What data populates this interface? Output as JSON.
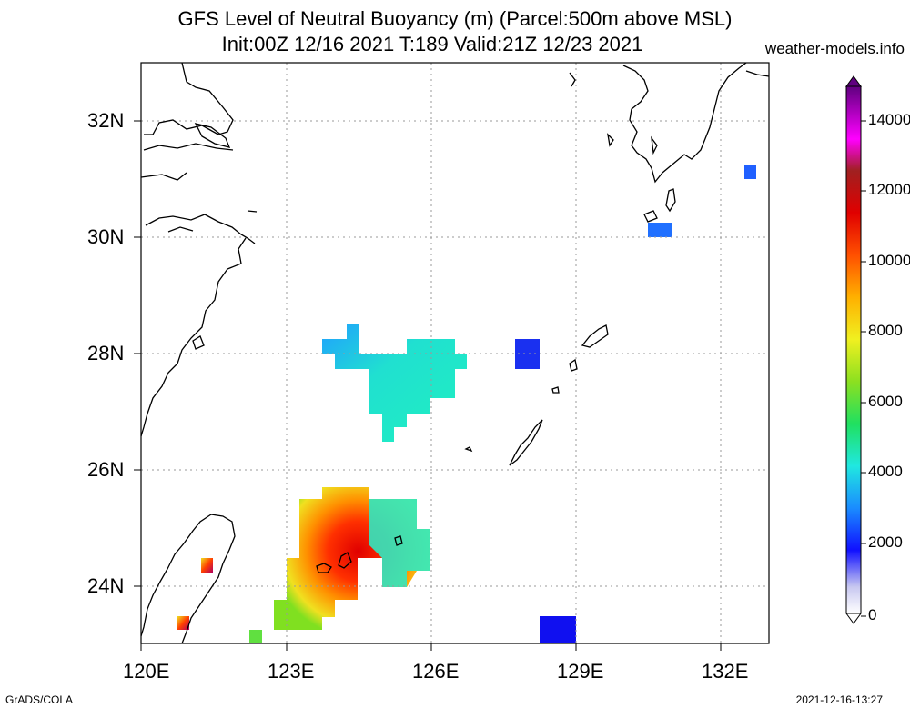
{
  "title": {
    "line1": "GFS Level of Neutral Buoyancy (m) (Parcel:500m above MSL)",
    "line2": "Init:00Z 12/16 2021 T:189 Valid:21Z 12/23 2021"
  },
  "site": "weather-models.info",
  "axes": {
    "lon_ticks": [
      "120E",
      "123E",
      "126E",
      "129E",
      "132E"
    ],
    "lat_ticks": [
      "32N",
      "30N",
      "28N",
      "26N",
      "24N"
    ],
    "lon_range": [
      120,
      133
    ],
    "lat_range": [
      23,
      33
    ]
  },
  "colorbar": {
    "labels": [
      "14000",
      "12000",
      "10000",
      "8000",
      "6000",
      "4000",
      "2000",
      "0"
    ],
    "range": [
      0,
      15000
    ]
  },
  "footer": {
    "left": "GrADS/COLA",
    "right": "2021-12-16-13:27"
  },
  "colors": {
    "grid": "#9a9a9a",
    "coast": "#000000"
  },
  "chart_data": {
    "type": "heatmap",
    "variable": "Level of Neutral Buoyancy (m)",
    "xlabel": "",
    "ylabel": "",
    "cells": [
      {
        "lon": 123.9,
        "lat": 24.8,
        "value": 11000
      },
      {
        "lon": 123.6,
        "lat": 24.2,
        "value": 9000
      },
      {
        "lon": 123.2,
        "lat": 23.6,
        "value": 7000
      },
      {
        "lon": 124.8,
        "lat": 24.9,
        "value": 5000
      },
      {
        "lon": 125.2,
        "lat": 24.5,
        "value": 3500
      },
      {
        "lon": 125.0,
        "lat": 27.7,
        "value": 3500
      },
      {
        "lon": 123.8,
        "lat": 28.0,
        "value": 2500
      },
      {
        "lon": 128.0,
        "lat": 28.0,
        "value": 1500
      },
      {
        "lon": 128.8,
        "lat": 23.2,
        "value": 1500
      },
      {
        "lon": 130.8,
        "lat": 30.1,
        "value": 2000
      },
      {
        "lon": 132.6,
        "lat": 31.1,
        "value": 2000
      },
      {
        "lon": 121.4,
        "lat": 24.4,
        "value": 10000
      },
      {
        "lon": 120.9,
        "lat": 23.4,
        "value": 10000
      },
      {
        "lon": 122.3,
        "lat": 23.1,
        "value": 5000
      }
    ]
  }
}
